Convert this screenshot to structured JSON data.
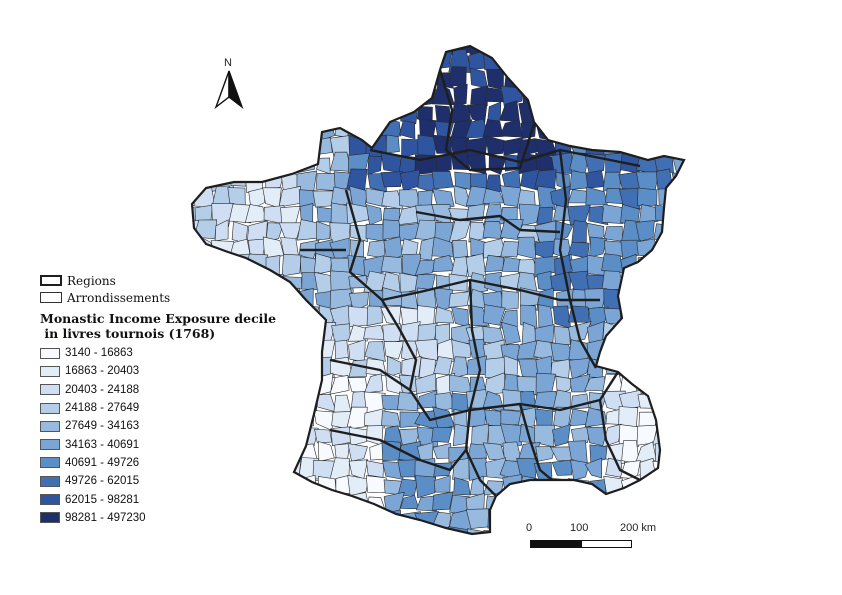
{
  "north_arrow": {
    "label": "N",
    "icon": "north-arrow-icon"
  },
  "legend": {
    "regions_label": "Regions",
    "arrondissements_label": "Arrondissements",
    "title_line1": "Monastic Income Exposure decile",
    "title_line2": " in livres tournois (1768)",
    "classes": [
      {
        "label": "3140 - 16863",
        "color": "#f7fbff"
      },
      {
        "label": "16863 - 20403",
        "color": "#e3edf8"
      },
      {
        "label": "20403 - 24188",
        "color": "#cfdef2"
      },
      {
        "label": "24188 - 27649",
        "color": "#b4cde8"
      },
      {
        "label": "27649 - 34163",
        "color": "#98badf"
      },
      {
        "label": "34163 - 40691",
        "color": "#7aa5d4"
      },
      {
        "label": "40691 - 49726",
        "color": "#5b8dc6"
      },
      {
        "label": "49726 - 62015",
        "color": "#416fb4"
      },
      {
        "label": "62015 - 98281",
        "color": "#2f55a0"
      },
      {
        "label": "98281 - 497230",
        "color": "#1e2f6b"
      }
    ]
  },
  "scale": {
    "tick_0": "0",
    "tick_1": "100",
    "tick_2": "200 km"
  }
}
